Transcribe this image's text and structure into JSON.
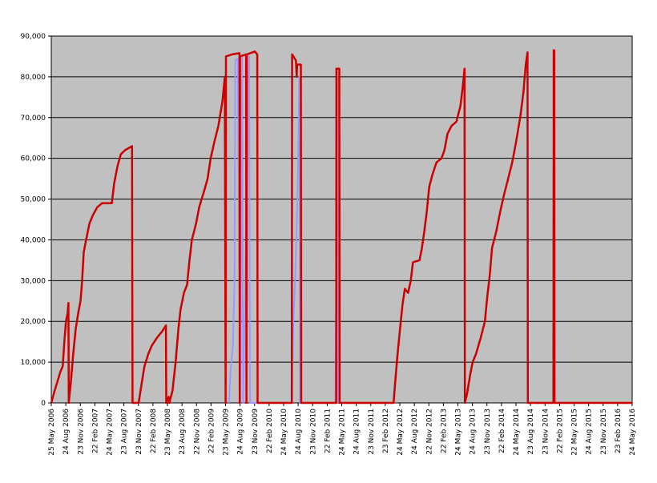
{
  "chart_data": {
    "type": "line",
    "title": "",
    "xlabel": "",
    "ylabel": "",
    "ylim": [
      0,
      90000
    ],
    "yticks": [
      0,
      10000,
      20000,
      30000,
      40000,
      50000,
      60000,
      70000,
      80000,
      90000
    ],
    "ytick_labels": [
      "0",
      "10,000",
      "20,000",
      "30,000",
      "40,000",
      "50,000",
      "60,000",
      "70,000",
      "80,000",
      "90,000"
    ],
    "xlim": [
      "2006-05-25",
      "2016-05-24"
    ],
    "xtick_labels": [
      "25 May 2006",
      "24 Aug 2006",
      "23 Nov 2006",
      "22 Feb 2007",
      "24 May 2007",
      "23 Aug 2007",
      "23 Nov 2007",
      "22 Feb 2008",
      "23 May 2008",
      "23 Aug 2008",
      "22 Nov 2008",
      "22 Feb 2009",
      "23 May 2009",
      "24 Aug 2009",
      "23 Nov 2009",
      "22 Feb 2010",
      "24 May 2010",
      "24 Aug 2010",
      "23 Nov 2010",
      "22 Feb 2011",
      "24 May 2011",
      "24 Aug 2011",
      "23 Nov 2011",
      "23 Feb 2012",
      "24 May 2012",
      "24 Aug 2012",
      "22 Nov 2012",
      "22 Feb 2013",
      "24 May 2013",
      "24 Aug 2013",
      "23 Nov 2013",
      "22 Feb 2014",
      "24 May 2014",
      "23 Aug 2014",
      "23 Nov 2014",
      "22 Feb 2015",
      "22 May 2015",
      "24 Aug 2015",
      "23 Nov 2015",
      "23 Feb 2016",
      "24 May 2016"
    ],
    "grid": true,
    "plot_background": "#c0c0c0",
    "series": [
      {
        "color": "#cc0000",
        "points": [
          [
            "2006-05-25",
            0
          ],
          [
            "2006-06-15",
            3000
          ],
          [
            "2006-07-01",
            5000
          ],
          [
            "2006-07-20",
            7500
          ],
          [
            "2006-08-05",
            9000
          ],
          [
            "2006-08-15",
            15000
          ],
          [
            "2006-08-25",
            20000
          ],
          [
            "2006-09-05",
            22000
          ],
          [
            "2006-09-10",
            24500
          ],
          [
            "2006-09-12",
            0
          ],
          [
            "2006-09-25",
            5000
          ],
          [
            "2006-10-10",
            12000
          ],
          [
            "2006-10-25",
            18000
          ],
          [
            "2006-11-10",
            22000
          ],
          [
            "2006-11-25",
            25000
          ],
          [
            "2006-12-05",
            30000
          ],
          [
            "2006-12-15",
            37000
          ],
          [
            "2006-12-30",
            40000
          ],
          [
            "2007-01-20",
            44000
          ],
          [
            "2007-02-10",
            46000
          ],
          [
            "2007-03-10",
            48000
          ],
          [
            "2007-04-10",
            49000
          ],
          [
            "2007-06-10",
            49000
          ],
          [
            "2007-06-25",
            54000
          ],
          [
            "2007-07-15",
            58000
          ],
          [
            "2007-08-05",
            61000
          ],
          [
            "2007-09-01",
            62000
          ],
          [
            "2007-10-15",
            63000
          ],
          [
            "2007-10-18",
            0
          ],
          [
            "2007-11-25",
            0
          ],
          [
            "2007-12-15",
            5000
          ],
          [
            "2008-01-01",
            9000
          ],
          [
            "2008-01-25",
            12000
          ],
          [
            "2008-02-15",
            14000
          ],
          [
            "2008-03-20",
            16000
          ],
          [
            "2008-04-20",
            17500
          ],
          [
            "2008-05-15",
            19000
          ],
          [
            "2008-05-17",
            0
          ],
          [
            "2008-06-01",
            1500
          ],
          [
            "2008-06-05",
            0
          ],
          [
            "2008-06-25",
            3000
          ],
          [
            "2008-07-15",
            10000
          ],
          [
            "2008-08-01",
            18000
          ],
          [
            "2008-08-15",
            23000
          ],
          [
            "2008-09-05",
            27000
          ],
          [
            "2008-09-25",
            29000
          ],
          [
            "2008-10-10",
            35000
          ],
          [
            "2008-10-25",
            40000
          ],
          [
            "2008-11-20",
            44000
          ],
          [
            "2008-12-10",
            48000
          ],
          [
            "2009-01-10",
            52000
          ],
          [
            "2009-02-01",
            55000
          ],
          [
            "2009-02-20",
            60000
          ],
          [
            "2009-03-15",
            64000
          ],
          [
            "2009-04-10",
            68000
          ],
          [
            "2009-05-05",
            74000
          ],
          [
            "2009-05-20",
            80000
          ],
          [
            "2009-05-25",
            0
          ],
          [
            "2009-05-27",
            85000
          ],
          [
            "2009-07-05",
            85500
          ],
          [
            "2009-08-20",
            85800
          ],
          [
            "2009-08-22",
            0
          ],
          [
            "2009-08-24",
            85000
          ],
          [
            "2009-10-01",
            85500
          ],
          [
            "2009-10-03",
            0
          ],
          [
            "2009-10-05",
            85500
          ],
          [
            "2009-11-25",
            86200
          ],
          [
            "2009-12-10",
            85500
          ],
          [
            "2009-12-12",
            0
          ],
          [
            "2010-07-15",
            0
          ],
          [
            "2010-07-17",
            85500
          ],
          [
            "2010-08-10",
            84000
          ],
          [
            "2010-08-15",
            80000
          ],
          [
            "2010-08-18",
            83000
          ],
          [
            "2010-09-10",
            83000
          ],
          [
            "2010-09-12",
            0
          ],
          [
            "2011-04-20",
            0
          ],
          [
            "2011-04-22",
            82000
          ],
          [
            "2011-05-10",
            82000
          ],
          [
            "2011-05-12",
            0
          ],
          [
            "2012-04-15",
            0
          ],
          [
            "2012-04-25",
            5000
          ],
          [
            "2012-05-10",
            12000
          ],
          [
            "2012-05-25",
            18000
          ],
          [
            "2012-06-10",
            24000
          ],
          [
            "2012-06-25",
            28000
          ],
          [
            "2012-07-15",
            27000
          ],
          [
            "2012-08-01",
            30000
          ],
          [
            "2012-08-15",
            34500
          ],
          [
            "2012-09-25",
            35000
          ],
          [
            "2012-10-10",
            38000
          ],
          [
            "2012-10-25",
            42000
          ],
          [
            "2012-11-10",
            47000
          ],
          [
            "2012-11-25",
            53000
          ],
          [
            "2012-12-15",
            56000
          ],
          [
            "2013-01-10",
            59000
          ],
          [
            "2013-02-10",
            60000
          ],
          [
            "2013-03-01",
            62000
          ],
          [
            "2013-03-20",
            66000
          ],
          [
            "2013-04-15",
            68000
          ],
          [
            "2013-05-15",
            69000
          ],
          [
            "2013-06-10",
            73000
          ],
          [
            "2013-06-25",
            78000
          ],
          [
            "2013-07-05",
            82000
          ],
          [
            "2013-07-07",
            0
          ],
          [
            "2013-07-20",
            2000
          ],
          [
            "2013-08-10",
            7000
          ],
          [
            "2013-08-25",
            10000
          ],
          [
            "2013-09-15",
            12000
          ],
          [
            "2013-10-15",
            16000
          ],
          [
            "2013-11-10",
            20000
          ],
          [
            "2013-11-25",
            26000
          ],
          [
            "2013-12-10",
            31000
          ],
          [
            "2013-12-25",
            38000
          ],
          [
            "2014-01-20",
            42000
          ],
          [
            "2014-02-15",
            47000
          ],
          [
            "2014-03-10",
            51000
          ],
          [
            "2014-04-05",
            55000
          ],
          [
            "2014-05-01",
            59000
          ],
          [
            "2014-05-25",
            64000
          ],
          [
            "2014-06-20",
            70000
          ],
          [
            "2014-07-10",
            76000
          ],
          [
            "2014-07-25",
            83000
          ],
          [
            "2014-08-05",
            86000
          ],
          [
            "2014-08-07",
            0
          ],
          [
            "2015-01-15",
            0
          ],
          [
            "2015-01-17",
            86500
          ],
          [
            "2015-01-20",
            86500
          ],
          [
            "2015-01-22",
            0
          ],
          [
            "2016-05-24",
            0
          ]
        ]
      },
      {
        "color": "#9999ff",
        "points": [
          [
            "2009-06-15",
            0
          ],
          [
            "2009-06-25",
            8000
          ],
          [
            "2009-07-10",
            14000
          ],
          [
            "2009-07-20",
            30000
          ],
          [
            "2009-07-25",
            84000
          ],
          [
            "2009-08-10",
            84500
          ],
          [
            "2009-08-25",
            0
          ],
          [
            "2009-09-05",
            85000
          ],
          [
            "2009-09-12",
            0
          ],
          [
            "2009-10-20",
            85000
          ],
          [
            "2009-10-25",
            0
          ],
          [
            "2010-07-15",
            0
          ],
          [
            "2010-07-25",
            20000
          ],
          [
            "2010-08-05",
            30000
          ],
          [
            "2010-08-20",
            50000
          ],
          [
            "2010-09-01",
            80000
          ],
          [
            "2010-09-05",
            0
          ],
          [
            "2011-04-15",
            0
          ],
          [
            "2011-04-28",
            80000
          ],
          [
            "2011-05-05",
            0
          ]
        ]
      }
    ]
  }
}
